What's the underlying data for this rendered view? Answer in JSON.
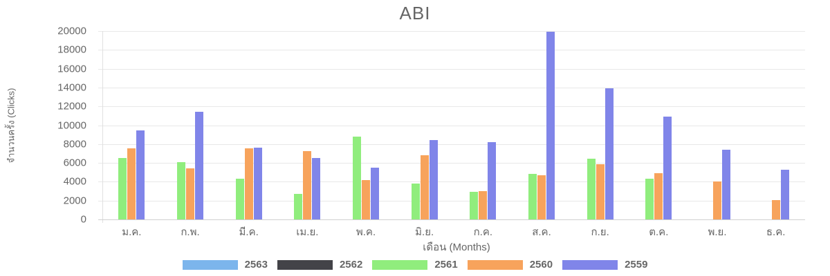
{
  "chart_data": {
    "type": "bar",
    "title": "ABI",
    "xlabel": "เดือน (Months)",
    "ylabel": "จำนวนครั้ง (Clicks)",
    "ylim": [
      0,
      20000
    ],
    "yticks": [
      0,
      2000,
      4000,
      6000,
      8000,
      10000,
      12000,
      14000,
      16000,
      18000,
      20000
    ],
    "grid": true,
    "legend_position": "bottom",
    "categories": [
      "ม.ค.",
      "ก.พ.",
      "มี.ค.",
      "เม.ย.",
      "พ.ค.",
      "มิ.ย.",
      "ก.ค.",
      "ส.ค.",
      "ก.ย.",
      "ต.ค.",
      "พ.ย.",
      "ธ.ค."
    ],
    "series": [
      {
        "name": "2563",
        "color": "#7cb5ec",
        "values": [
          0,
          0,
          0,
          0,
          0,
          0,
          0,
          0,
          0,
          0,
          0,
          0
        ]
      },
      {
        "name": "2562",
        "color": "#434348",
        "values": [
          0,
          0,
          0,
          0,
          0,
          0,
          0,
          0,
          0,
          0,
          0,
          0
        ]
      },
      {
        "name": "2561",
        "color": "#90ed7d",
        "values": [
          6500,
          6100,
          4300,
          2700,
          8800,
          3800,
          2950,
          4800,
          6450,
          4300,
          0,
          0
        ]
      },
      {
        "name": "2560",
        "color": "#f7a35c",
        "values": [
          7550,
          5450,
          7550,
          7250,
          4150,
          6800,
          3000,
          4700,
          5850,
          4900,
          4000,
          2050
        ]
      },
      {
        "name": "2559",
        "color": "#8085e9",
        "values": [
          9450,
          11450,
          7600,
          6500,
          5500,
          8400,
          8200,
          19950,
          13950,
          10950,
          7400,
          5250
        ]
      }
    ]
  }
}
